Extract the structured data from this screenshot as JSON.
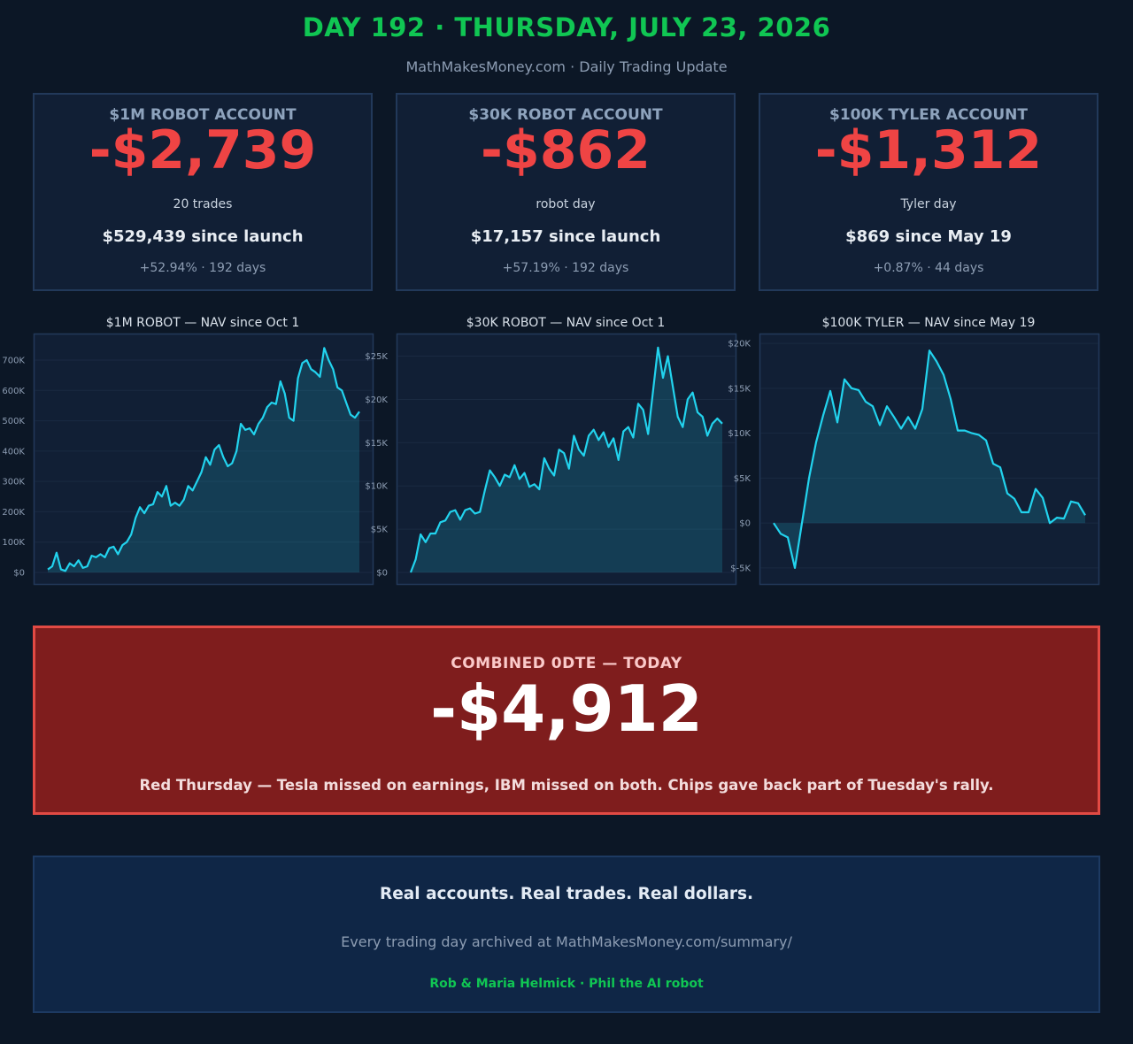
{
  "header": {
    "title": "DAY 192 · THURSDAY, JULY 23, 2026",
    "subtitle": "MathMakesMoney.com  ·  Daily Trading Update"
  },
  "colors": {
    "background": "#0c1726",
    "green_accent": "#10c653",
    "loss_red": "#ef4444",
    "line_cyan": "#22d3ee",
    "banner_red": "#7f1d1d"
  },
  "cards": [
    {
      "title": "$1M ROBOT ACCOUNT",
      "value": "-$2,739",
      "note": "20 trades",
      "since": "$529,439 since launch",
      "stats": "+52.94% · 192 days"
    },
    {
      "title": "$30K ROBOT ACCOUNT",
      "value": "-$862",
      "note": "robot day",
      "since": "$17,157 since launch",
      "stats": "+57.19% · 192 days"
    },
    {
      "title": "$100K TYLER ACCOUNT",
      "value": "-$1,312",
      "note": "Tyler day",
      "since": "$869 since May 19",
      "stats": "+0.87% · 44 days"
    }
  ],
  "chart_data": [
    {
      "type": "area",
      "title": "$1M ROBOT — NAV since Oct 1",
      "ylim": [
        0,
        770000
      ],
      "yticks": [
        0,
        100000,
        200000,
        300000,
        400000,
        500000,
        600000,
        700000
      ],
      "ytick_labels": [
        "$0",
        "100K",
        "200K",
        "300K",
        "400K",
        "500K",
        "600K",
        "700K"
      ],
      "grid": true,
      "values": [
        10000,
        20000,
        65000,
        10000,
        5000,
        30000,
        20000,
        40000,
        15000,
        20000,
        55000,
        50000,
        60000,
        50000,
        80000,
        85000,
        60000,
        90000,
        100000,
        125000,
        180000,
        215000,
        195000,
        220000,
        225000,
        265000,
        250000,
        285000,
        220000,
        230000,
        220000,
        240000,
        285000,
        270000,
        300000,
        330000,
        380000,
        355000,
        405000,
        420000,
        380000,
        350000,
        360000,
        400000,
        490000,
        470000,
        475000,
        455000,
        490000,
        510000,
        545000,
        560000,
        555000,
        630000,
        590000,
        510000,
        500000,
        640000,
        690000,
        700000,
        670000,
        660000,
        645000,
        740000,
        700000,
        670000,
        610000,
        600000,
        560000,
        520000,
        510000,
        530000
      ]
    },
    {
      "type": "area",
      "title": "$30K ROBOT — NAV since Oct 1",
      "ylim": [
        0,
        27000
      ],
      "yticks": [
        0,
        5000,
        10000,
        15000,
        20000,
        25000
      ],
      "ytick_labels": [
        "$0",
        "$5K",
        "$10K",
        "$15K",
        "$20K",
        "$25K"
      ],
      "grid": true,
      "values": [
        0,
        1500,
        4400,
        3500,
        4500,
        4500,
        5800,
        6000,
        7000,
        7200,
        6100,
        7200,
        7400,
        6800,
        7000,
        9500,
        11800,
        11000,
        10000,
        11300,
        11000,
        12400,
        10800,
        11500,
        9900,
        10200,
        9600,
        13200,
        12000,
        11200,
        14200,
        13800,
        12000,
        15800,
        14200,
        13500,
        15800,
        16500,
        15300,
        16200,
        14500,
        15500,
        13000,
        16300,
        16800,
        15600,
        19500,
        18800,
        16000,
        21000,
        26000,
        22500,
        25000,
        21500,
        18000,
        16800,
        20000,
        20800,
        18500,
        18000,
        15800,
        17200,
        17800,
        17200
      ]
    },
    {
      "type": "line",
      "title": "$100K TYLER — NAV since May 19",
      "ylim": [
        -5500,
        20500
      ],
      "yticks": [
        -5000,
        0,
        5000,
        10000,
        15000,
        20000
      ],
      "ytick_labels": [
        "$-5K",
        "$0",
        "$5K",
        "$10K",
        "$15K",
        "$20K"
      ],
      "grid": true,
      "values": [
        0,
        -1200,
        -1600,
        -5000,
        0,
        5000,
        9000,
        12000,
        14700,
        11200,
        16000,
        15000,
        14800,
        13500,
        13000,
        10900,
        13000,
        11800,
        10500,
        11800,
        10500,
        12700,
        19200,
        18000,
        16500,
        13800,
        10300,
        10300,
        10000,
        9800,
        9200,
        6600,
        6200,
        3300,
        2700,
        1200,
        1200,
        3800,
        2800,
        0,
        600,
        500,
        2400,
        2200,
        869
      ]
    }
  ],
  "banner": {
    "label": "COMBINED 0DTE — TODAY",
    "value": "-$4,912",
    "note": "Red Thursday — Tesla missed on earnings, IBM missed on both. Chips gave back part of Tuesday's rally."
  },
  "footer": {
    "tagline": "Real accounts. Real trades. Real dollars.",
    "archive": "Every trading day archived at MathMakesMoney.com/summary/",
    "credits": "Rob & Maria Helmick  ·  Phil the AI robot"
  }
}
